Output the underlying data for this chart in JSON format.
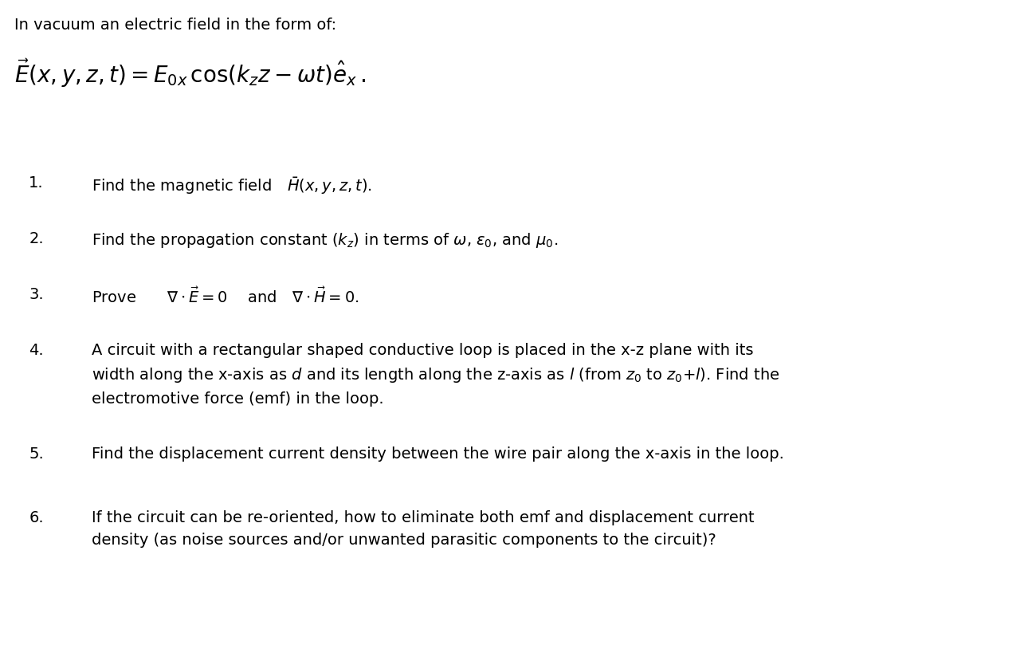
{
  "background_color": "#ffffff",
  "title_text": "In vacuum an electric field in the form of:",
  "title_fontsize": 14,
  "main_eq": "$\\vec{E}(x, y, z, t) = E_{0x}\\, \\mathrm{cos}(k_z z - \\omega t)\\hat{e}_x\\,.$",
  "main_eq_fontsize": 20,
  "items": [
    {
      "num": "1.",
      "text": "Find the magnetic field $\\bar{H}(x, y, z, t)$.",
      "lines": 1,
      "fontsize": 14
    },
    {
      "num": "2.",
      "text": "Find the propagation constant ($k_z$) in terms of $\\omega$, $\\varepsilon_0$, and $\\mu_0$.",
      "lines": 1,
      "fontsize": 14
    },
    {
      "num": "3.",
      "text": "Prove  $\\nabla \\cdot \\vec{E} = 0$  and $\\nabla \\cdot \\vec{H} = 0$.",
      "lines": 1,
      "fontsize": 14
    },
    {
      "num": "4.",
      "text": "A circuit with a rectangular shaped conductive loop is placed in the x-z plane with its\nwidth along the x-axis as $d$ and its length along the z-axis as $l$ (from $z_0$ to $z_0$+$l$). Find the\nelectromotive force (emf) in the loop.",
      "lines": 3,
      "fontsize": 14
    },
    {
      "num": "5.",
      "text": "Find the displacement current density between the wire pair along the x-axis in the loop.",
      "lines": 1,
      "fontsize": 14
    },
    {
      "num": "6.",
      "text": "If the circuit can be re-oriented, how to eliminate both emf and displacement current\ndensity (as noise sources and/or unwanted parasitic components to the circuit)?",
      "lines": 2,
      "fontsize": 14
    }
  ],
  "text_color": "#000000",
  "fig_width": 12.9,
  "fig_height": 8.14,
  "dpi": 100
}
